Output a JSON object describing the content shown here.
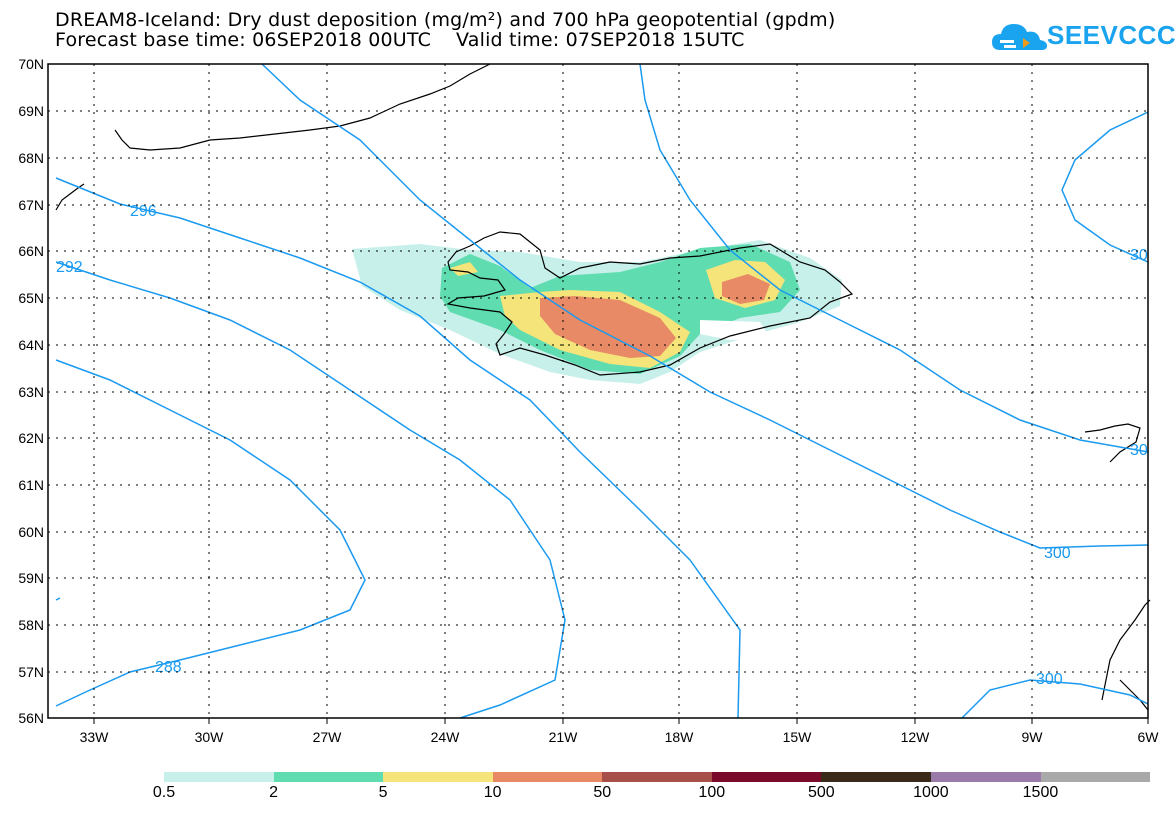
{
  "title_line1": "DREAM8-Iceland: Dry dust deposition (mg/m²) and 700 hPa geopotential (gpdm)",
  "title_line2": "Forecast base time: 06SEP2018 00UTC    Valid time: 07SEP2018 15UTC",
  "logo_text": "SEEVCCC",
  "logo_icon": "cloud-icon",
  "lat_labels": [
    "70N",
    "69N",
    "68N",
    "67N",
    "66N",
    "65N",
    "64N",
    "63N",
    "62N",
    "61N",
    "60N",
    "59N",
    "58N",
    "57N",
    "56N"
  ],
  "lon_labels": [
    "33W",
    "30W",
    "27W",
    "24W",
    "21W",
    "18W",
    "15W",
    "12W",
    "9W",
    "6W"
  ],
  "contour_labels": [
    "296",
    "292",
    "288",
    "300",
    "300",
    "300",
    "30",
    "30"
  ],
  "colorbar": {
    "labels": [
      "0.5",
      "2",
      "5",
      "10",
      "50",
      "100",
      "500",
      "1000",
      "1500"
    ],
    "colors": [
      "#c8f0ea",
      "#5fdcb0",
      "#f5e47a",
      "#e88a66",
      "#a8504a",
      "#7a0a2a",
      "#3a2a1a",
      "#9a7aa8",
      "#a9a9a9"
    ]
  },
  "colors": {
    "contour": "#1a9af0",
    "coast": "#000000",
    "frame": "#000000"
  }
}
